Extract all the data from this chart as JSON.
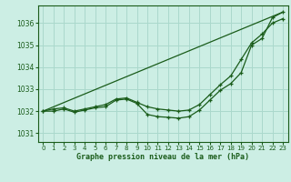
{
  "title": "Graphe pression niveau de la mer (hPa)",
  "background_color": "#cceee4",
  "grid_color": "#aad8cc",
  "line_color": "#1a5c1a",
  "xlim": [
    -0.5,
    23.5
  ],
  "ylim": [
    1030.6,
    1036.8
  ],
  "yticks": [
    1031,
    1032,
    1033,
    1034,
    1035,
    1036
  ],
  "ytick_top": "1036",
  "xticks": [
    0,
    1,
    2,
    3,
    4,
    5,
    6,
    7,
    8,
    9,
    10,
    11,
    12,
    13,
    14,
    15,
    16,
    17,
    18,
    19,
    20,
    21,
    22,
    23
  ],
  "series_dip": {
    "x": [
      0,
      1,
      2,
      3,
      4,
      5,
      6,
      7,
      8,
      9,
      10,
      11,
      12,
      13,
      14,
      15,
      16,
      17,
      18,
      19,
      20,
      21,
      22,
      23
    ],
    "y": [
      1032.0,
      1032.0,
      1032.1,
      1031.95,
      1032.05,
      1032.15,
      1032.2,
      1032.5,
      1032.55,
      1032.35,
      1031.85,
      1031.75,
      1031.72,
      1031.68,
      1031.75,
      1032.05,
      1032.5,
      1032.95,
      1033.25,
      1033.75,
      1035.0,
      1035.3,
      1036.25,
      1036.5
    ]
  },
  "series_mid": {
    "x": [
      0,
      1,
      2,
      3,
      4,
      5,
      6,
      7,
      8,
      9,
      10,
      11,
      12,
      13,
      14,
      15,
      16,
      17,
      18,
      19,
      20,
      21,
      22,
      23
    ],
    "y": [
      1032.0,
      1032.1,
      1032.15,
      1032.0,
      1032.1,
      1032.2,
      1032.3,
      1032.55,
      1032.6,
      1032.4,
      1032.2,
      1032.1,
      1032.05,
      1032.0,
      1032.05,
      1032.3,
      1032.75,
      1033.2,
      1033.6,
      1034.35,
      1035.1,
      1035.5,
      1036.0,
      1036.2
    ]
  },
  "series_straight": {
    "x": [
      0,
      23
    ],
    "y": [
      1032.0,
      1036.5
    ]
  }
}
